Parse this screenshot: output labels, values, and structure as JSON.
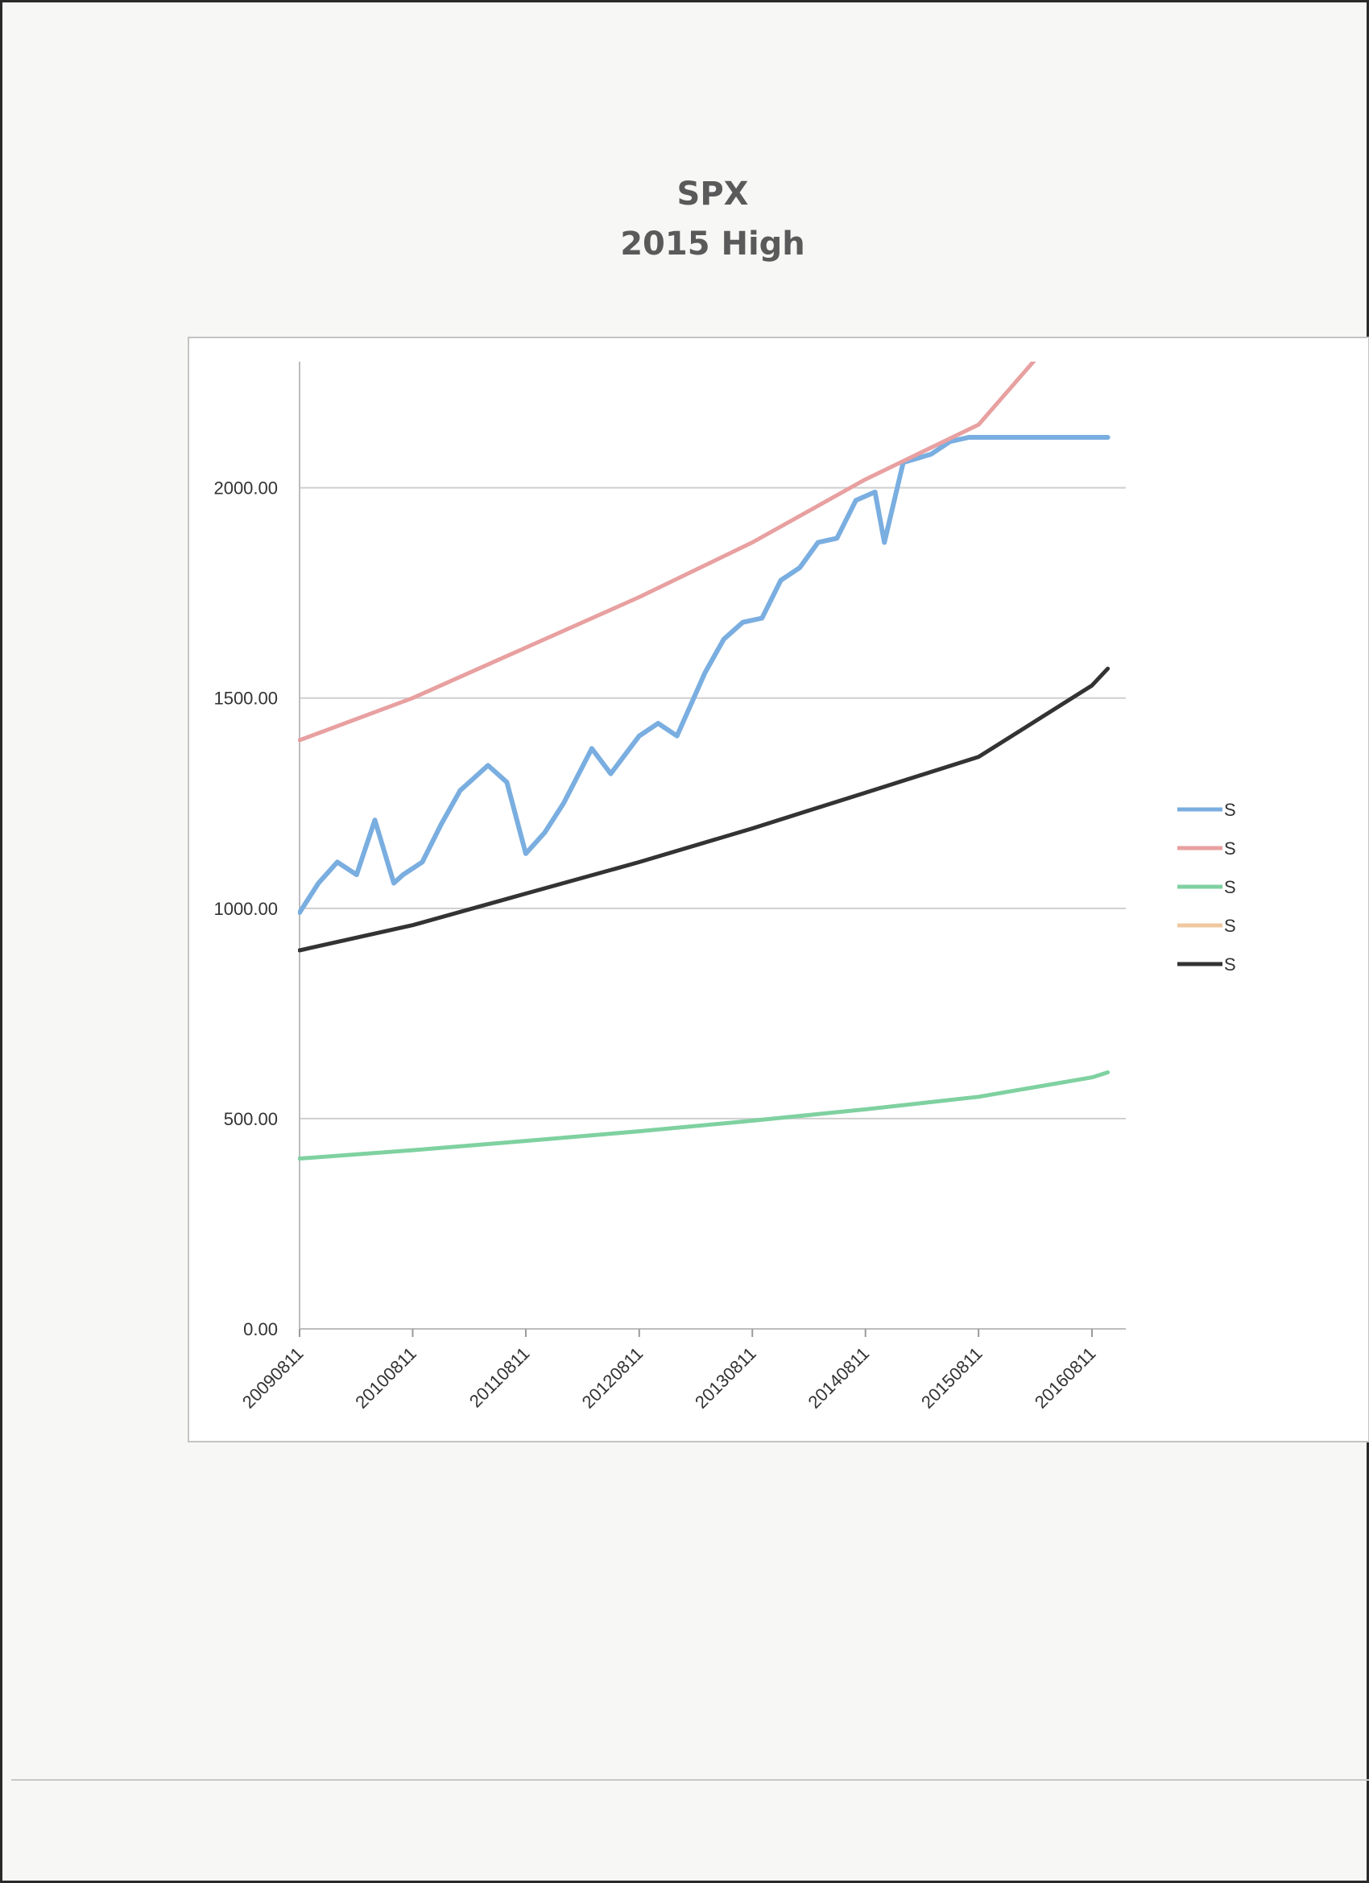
{
  "chart_data": {
    "type": "line",
    "title": "SPX",
    "subtitle": "2015 High",
    "xlabel": "",
    "ylabel": "",
    "x_ticks": [
      "20090811",
      "20100811",
      "20110811",
      "20120811",
      "20130811",
      "20140811",
      "20150811",
      "20160811"
    ],
    "x_range": [
      "20090811",
      "20161001"
    ],
    "y_ticks": [
      "0.00",
      "500.00",
      "1000.00",
      "1500.00",
      "2000.00"
    ],
    "ylim": [
      0,
      2300
    ],
    "grid": "horizontal",
    "legend_position": "right (cropped)",
    "legend_entries_visible": [
      "S",
      "S",
      "S",
      "S",
      "S"
    ],
    "series": [
      {
        "color": "#7aaee0",
        "x": [
          "20090811",
          "20091011",
          "20091211",
          "20100211",
          "20100411",
          "20100611",
          "20100711",
          "20100911",
          "20101111",
          "20110111",
          "20110411",
          "20110611",
          "20110811",
          "20111011",
          "20111211",
          "20120311",
          "20120511",
          "20120811",
          "20121011",
          "20121211",
          "20130311",
          "20130511",
          "20130711",
          "20130911",
          "20131111",
          "20140111",
          "20140311",
          "20140511",
          "20140711",
          "20140911",
          "20141011",
          "20141211",
          "20150311",
          "20150511",
          "20150711",
          "20150811",
          "20160811",
          "20161001"
        ],
        "y": [
          990,
          1060,
          1110,
          1080,
          1210,
          1060,
          1080,
          1110,
          1200,
          1280,
          1340,
          1300,
          1130,
          1180,
          1250,
          1380,
          1320,
          1410,
          1440,
          1410,
          1560,
          1640,
          1680,
          1690,
          1780,
          1810,
          1870,
          1880,
          1970,
          1990,
          1870,
          2060,
          2080,
          2110,
          2120,
          2120,
          2120,
          2120
        ]
      },
      {
        "color": "#e8a0a0",
        "x": [
          "20090811",
          "20100811",
          "20110811",
          "20120811",
          "20130811",
          "20140811",
          "20150811",
          "20160811"
        ],
        "y": [
          1400,
          1500,
          1620,
          1740,
          1870,
          2020,
          2150,
          2460
        ]
      },
      {
        "color": "#7fd1a0",
        "x": [
          "20090811",
          "20100811",
          "20110811",
          "20120811",
          "20130811",
          "20140811",
          "20150811",
          "20160811",
          "20161001"
        ],
        "y": [
          405,
          425,
          447,
          470,
          495,
          522,
          552,
          598,
          610
        ]
      },
      {
        "color": "#333333",
        "x": [
          "20090811",
          "20100811",
          "20110811",
          "20120811",
          "20130811",
          "20140811",
          "20150811",
          "20160811",
          "20161001"
        ],
        "y": [
          900,
          960,
          1035,
          1110,
          1190,
          1275,
          1360,
          1530,
          1570
        ]
      }
    ]
  },
  "legend_colors": [
    "#7aaee0",
    "#e8a0a0",
    "#7fd1a0",
    "#f0c8a0",
    "#333333"
  ]
}
